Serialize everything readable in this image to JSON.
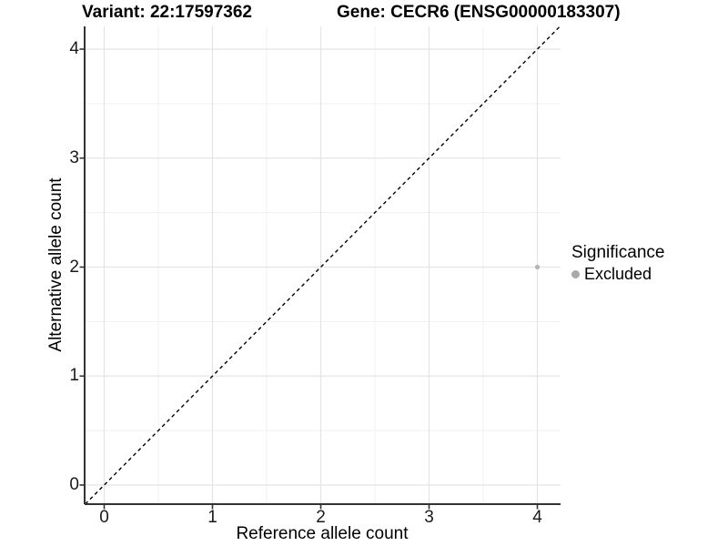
{
  "chart_data": {
    "type": "scatter",
    "titles": {
      "left": "Variant: 22:17597362",
      "right": "Gene: CECR6 (ENSG00000183307)"
    },
    "xlabel": "Reference allele count",
    "ylabel": "Alternative allele count",
    "xticks": [
      0,
      1,
      2,
      3,
      4
    ],
    "yticks": [
      0,
      1,
      2,
      3,
      4
    ],
    "xlim": [
      -0.2,
      4.2
    ],
    "ylim": [
      -0.2,
      4.2
    ],
    "grid": {
      "major": true,
      "minor": true
    },
    "reference_line": {
      "type": "identity y=x",
      "style": "dashed",
      "color": "#000000"
    },
    "series": [
      {
        "name": "Excluded",
        "color": "#b5b5b5",
        "points": [
          {
            "x": 4,
            "y": 2
          }
        ]
      }
    ],
    "legend": {
      "title": "Significance",
      "position": "right",
      "items": [
        {
          "label": "Excluded",
          "color": "#a9a9a9"
        }
      ]
    }
  },
  "colors": {
    "background": "#ffffff",
    "grid_major": "#e4e4e4",
    "grid_minor": "#f1f1f1",
    "axis": "#333333",
    "tick": "#333333",
    "text": "#000000",
    "point": "#b5b5b5"
  }
}
